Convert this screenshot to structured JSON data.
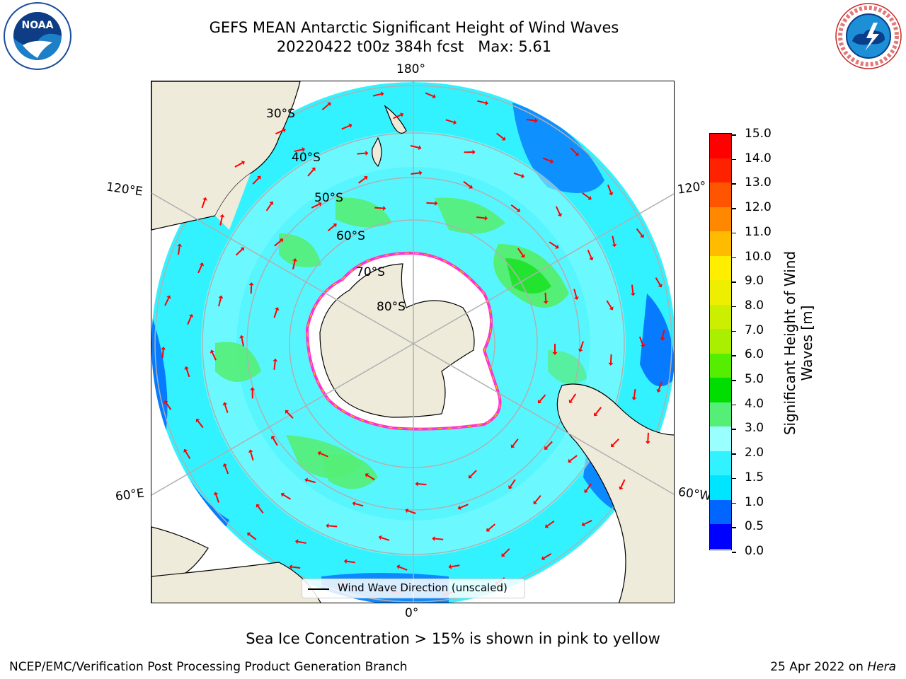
{
  "title": {
    "line1": "GEFS MEAN Antarctic Significant Height of Wind Waves",
    "line2": "20220422 t00z 384h fcst   Max: 5.61"
  },
  "logos": {
    "left": {
      "icon": "noaa-logo",
      "text": "NOAA"
    },
    "right": {
      "icon": "nws-logo",
      "text": "NATIONAL WEATHER SERVICE"
    }
  },
  "map": {
    "projection": "south-polar-stereographic",
    "longitude_labels": {
      "top": "180°",
      "bottom": "0°",
      "upper_left": "120°E",
      "upper_right": "120°",
      "lower_left": "60°E",
      "lower_right": "60°W"
    },
    "latitude_labels": [
      "30°S",
      "40°S",
      "50°S",
      "60°S",
      "70°S",
      "80°S"
    ],
    "colors": {
      "land": "#eeebdb",
      "ice_edge": "#ff33cc",
      "arrow": "#ff0000",
      "grid": "#b0b0b0"
    }
  },
  "colorbar": {
    "label": "Significant Height of Wind Waves [m]",
    "ticks": [
      "0.0",
      "0.5",
      "1.0",
      "1.5",
      "2.0",
      "3.0",
      "4.0",
      "5.0",
      "6.0",
      "7.0",
      "8.0",
      "9.0",
      "10.0",
      "11.0",
      "12.0",
      "13.0",
      "14.0",
      "15.0"
    ],
    "colors": [
      "#0000ff",
      "#0066ff",
      "#00e5ff",
      "#33f2ff",
      "#99ffff",
      "#55ee77",
      "#00dd00",
      "#55ee00",
      "#aaee00",
      "#ccee00",
      "#eeee00",
      "#ffee00",
      "#ffbb00",
      "#ff8800",
      "#ff5500",
      "#ff2200",
      "#ff0000"
    ]
  },
  "legend": {
    "label": "Wind Wave Direction (unscaled)"
  },
  "subtitle": "Sea Ice Concentration > 15% is shown in pink to yellow",
  "footer": {
    "left": "NCEP/EMC/Verification Post Processing Product Generation Branch",
    "right_prefix": "25 Apr 2022 on ",
    "right_host": "Hera"
  }
}
